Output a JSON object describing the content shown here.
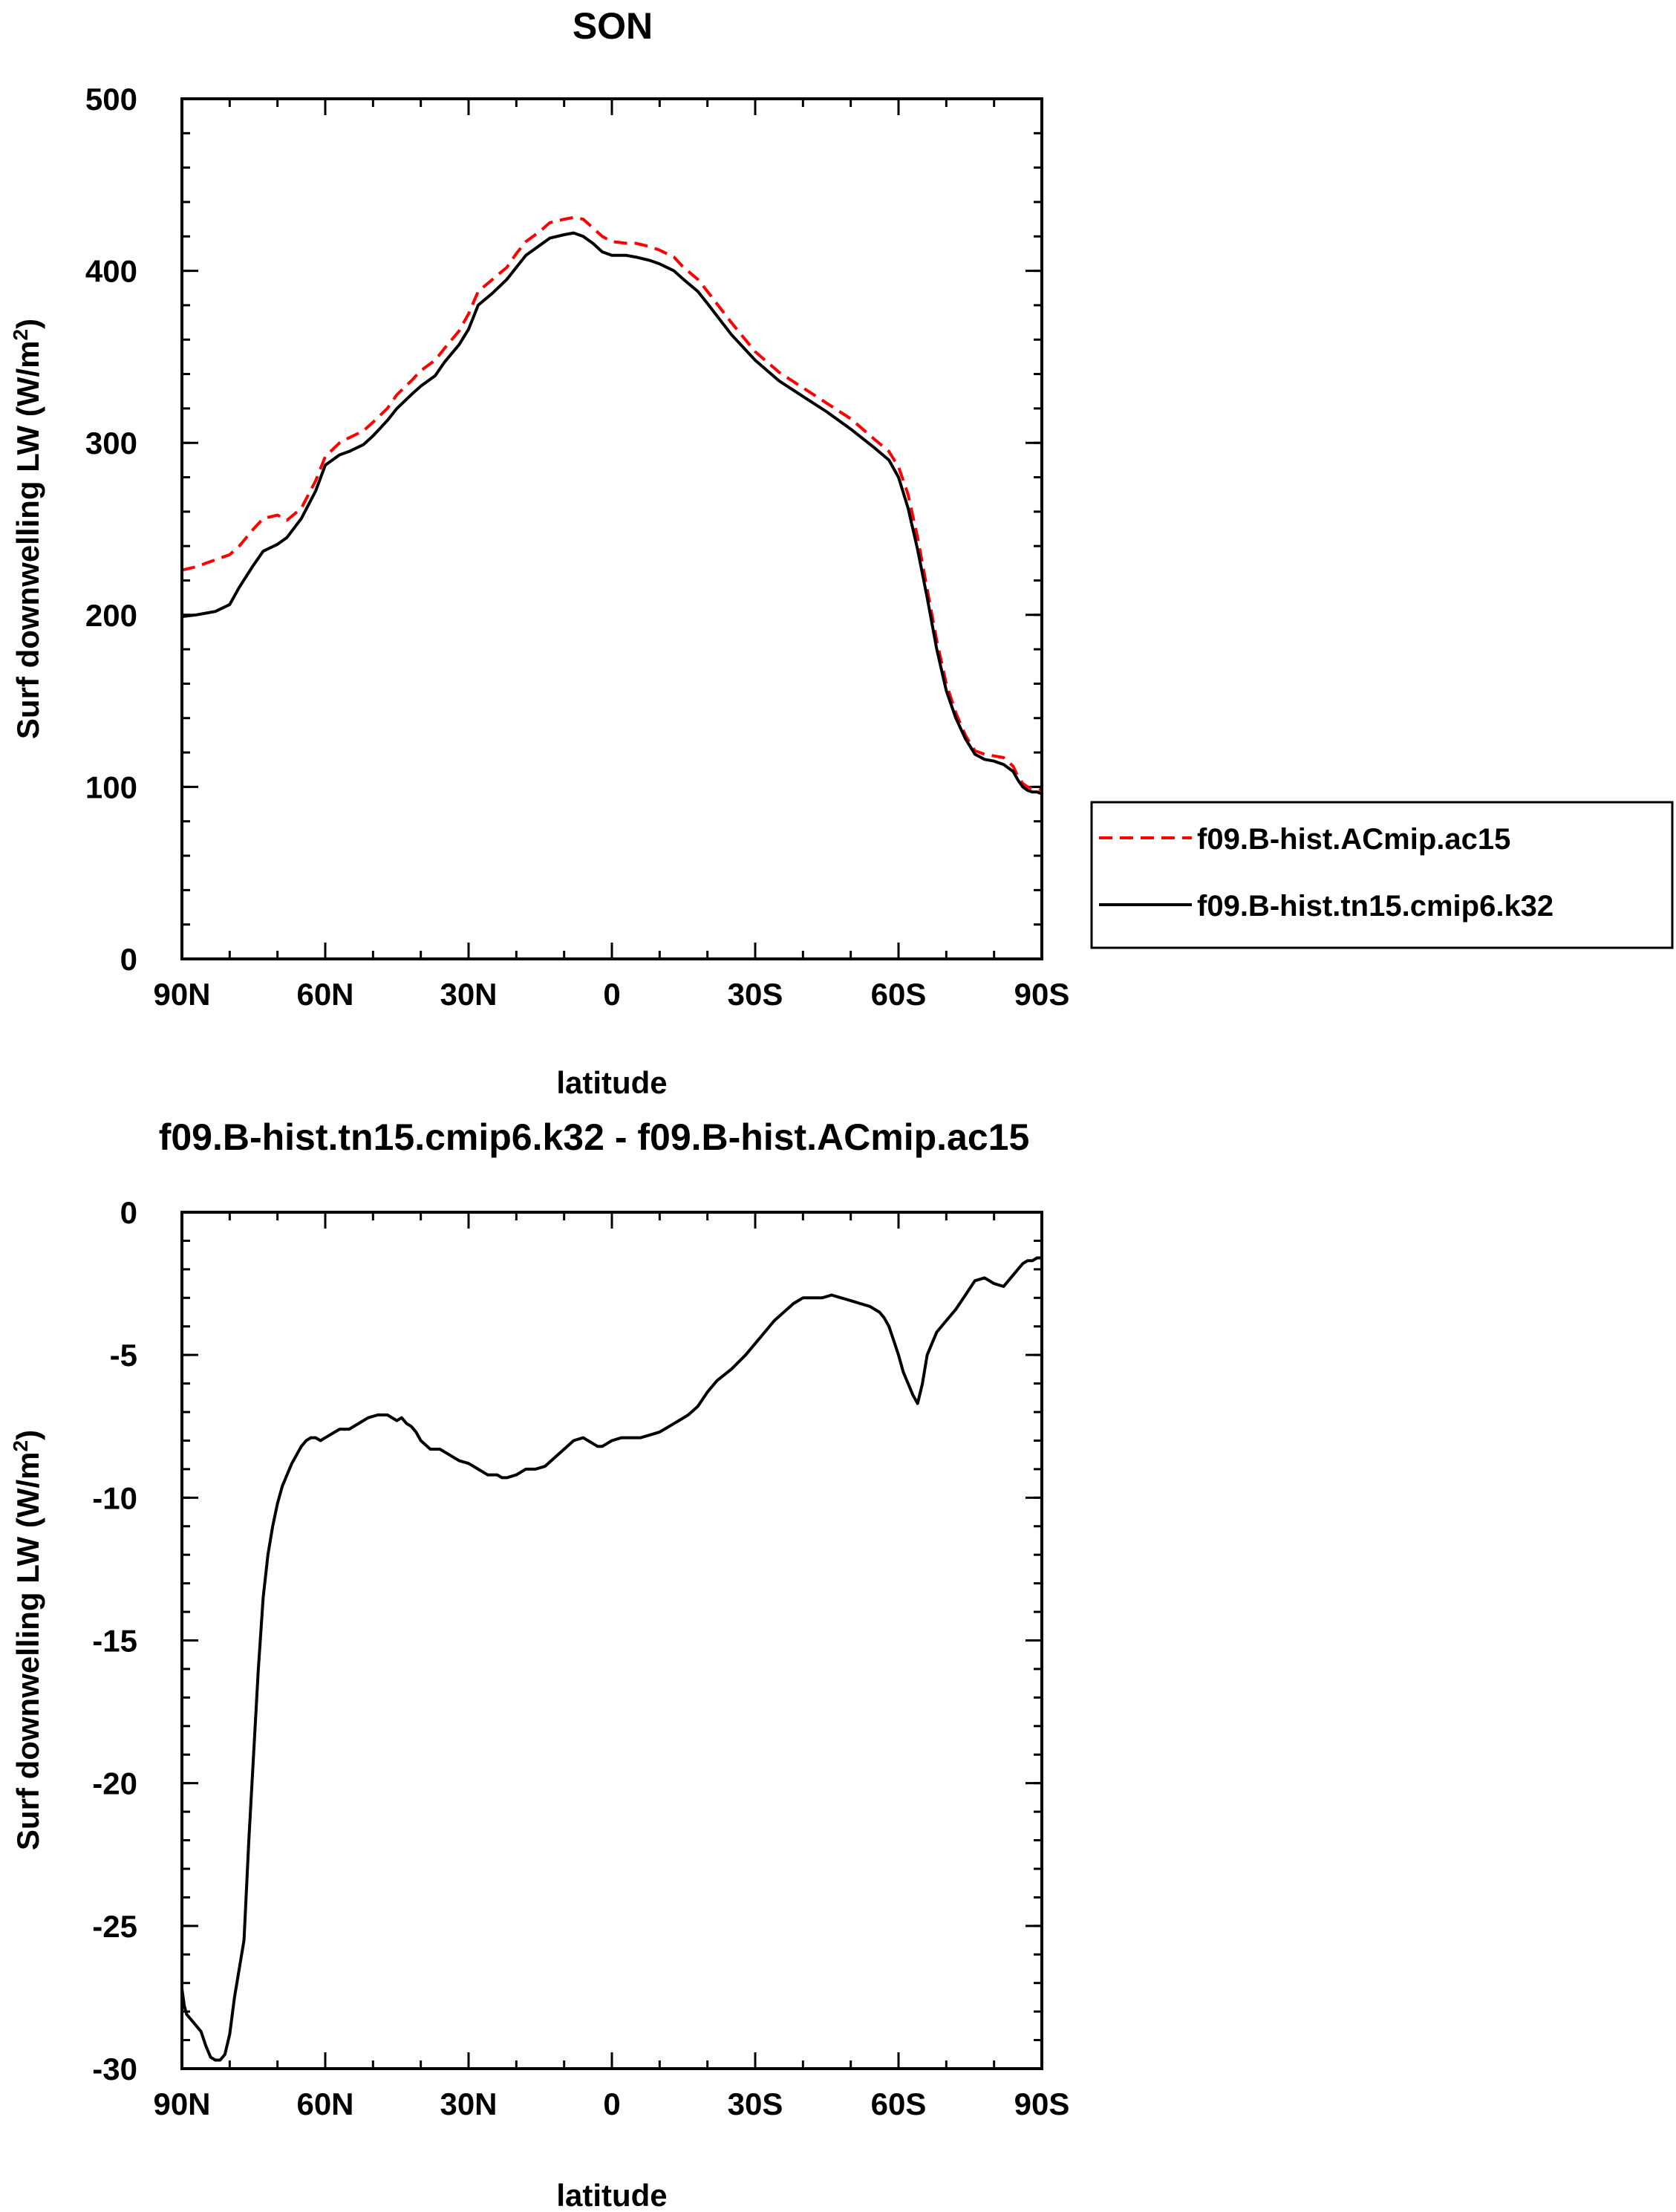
{
  "chart_data": [
    {
      "type": "line",
      "title": "SON",
      "xlabel": "latitude",
      "ylabel": "Surf downwelling LW (W/m",
      "ylabel_sup": "2",
      "ylabel_close": ")",
      "xlim": [
        90,
        -90
      ],
      "ylim": [
        0,
        500
      ],
      "x_ticks": [
        {
          "value": 90,
          "label": "90N"
        },
        {
          "value": 60,
          "label": "60N"
        },
        {
          "value": 30,
          "label": "30N"
        },
        {
          "value": 0,
          "label": "0"
        },
        {
          "value": -30,
          "label": "30S"
        },
        {
          "value": -60,
          "label": "60S"
        },
        {
          "value": -90,
          "label": "90S"
        }
      ],
      "y_ticks": [
        {
          "value": 0,
          "label": "0"
        },
        {
          "value": 100,
          "label": "100"
        },
        {
          "value": 200,
          "label": "200"
        },
        {
          "value": 300,
          "label": "300"
        },
        {
          "value": 400,
          "label": "400"
        },
        {
          "value": 500,
          "label": "500"
        }
      ],
      "grid": false,
      "legend": "right",
      "series": [
        {
          "name": "f09.B-hist.ACmip.ac15",
          "color": "#ff0000",
          "dash": "dashed",
          "x": [
            90,
            87,
            85,
            83,
            80,
            78,
            75,
            73,
            70,
            68,
            65,
            62,
            60,
            57,
            55,
            52,
            50,
            47,
            45,
            42,
            40,
            37,
            35,
            32,
            30,
            28,
            25,
            22,
            20,
            18,
            15,
            13,
            10,
            8,
            6,
            4,
            2,
            0,
            -3,
            -5,
            -8,
            -10,
            -13,
            -15,
            -18,
            -20,
            -25,
            -30,
            -35,
            -40,
            -45,
            -50,
            -55,
            -58,
            -60,
            -62,
            -64,
            -66,
            -68,
            -70,
            -72,
            -74,
            -76,
            -78,
            -80,
            -82,
            -84,
            -85,
            -86,
            -87,
            -88,
            -89,
            -90
          ],
          "y": [
            226,
            228,
            230,
            232,
            235,
            240,
            250,
            256,
            258,
            255,
            262,
            278,
            292,
            300,
            303,
            307,
            312,
            320,
            328,
            336,
            342,
            348,
            355,
            365,
            375,
            388,
            395,
            402,
            410,
            417,
            423,
            428,
            430,
            431,
            430,
            425,
            420,
            417,
            416,
            416,
            414,
            412,
            408,
            402,
            395,
            388,
            370,
            353,
            341,
            332,
            323,
            314,
            302,
            295,
            286,
            270,
            245,
            215,
            185,
            160,
            143,
            130,
            121,
            119,
            118,
            117,
            112,
            106,
            102,
            100,
            99,
            99,
            98
          ]
        },
        {
          "name": "f09.B-hist.tn15.cmip6.k32",
          "color": "#000000",
          "dash": "solid",
          "x": [
            90,
            87,
            85,
            83,
            80,
            78,
            75,
            73,
            70,
            68,
            65,
            62,
            60,
            57,
            55,
            52,
            50,
            47,
            45,
            42,
            40,
            37,
            35,
            32,
            30,
            28,
            25,
            22,
            20,
            18,
            15,
            13,
            10,
            8,
            6,
            4,
            2,
            0,
            -3,
            -5,
            -8,
            -10,
            -13,
            -15,
            -18,
            -20,
            -25,
            -30,
            -35,
            -40,
            -45,
            -50,
            -55,
            -58,
            -60,
            -62,
            -64,
            -66,
            -68,
            -70,
            -72,
            -74,
            -76,
            -78,
            -80,
            -82,
            -84,
            -85,
            -86,
            -87,
            -88,
            -89,
            -90
          ],
          "y": [
            199,
            200,
            201,
            202,
            206,
            216,
            229,
            237,
            241,
            245,
            256,
            272,
            287,
            293,
            295,
            299,
            304,
            313,
            320,
            328,
            333,
            339,
            347,
            357,
            366,
            380,
            387,
            395,
            402,
            409,
            415,
            419,
            421,
            422,
            420,
            416,
            411,
            409,
            409,
            408,
            406,
            404,
            400,
            395,
            388,
            381,
            363,
            348,
            336,
            327,
            318,
            308,
            297,
            290,
            280,
            262,
            238,
            210,
            180,
            156,
            140,
            128,
            119,
            116,
            115,
            113,
            109,
            104,
            100,
            98,
            97,
            97,
            96
          ]
        }
      ]
    },
    {
      "type": "line",
      "title": "f09.B-hist.tn15.cmip6.k32 - f09.B-hist.ACmip.ac15",
      "xlabel": "latitude",
      "ylabel": "Surf downwelling LW (W/m",
      "ylabel_sup": "2",
      "ylabel_close": ")",
      "xlim": [
        90,
        -90
      ],
      "ylim": [
        -30,
        0
      ],
      "x_ticks": [
        {
          "value": 90,
          "label": "90N"
        },
        {
          "value": 60,
          "label": "60N"
        },
        {
          "value": 30,
          "label": "30N"
        },
        {
          "value": 0,
          "label": "0"
        },
        {
          "value": -30,
          "label": "30S"
        },
        {
          "value": -60,
          "label": "60S"
        },
        {
          "value": -90,
          "label": "90S"
        }
      ],
      "y_ticks": [
        {
          "value": 0,
          "label": "0"
        },
        {
          "value": -5,
          "label": "-5"
        },
        {
          "value": -10,
          "label": "-10"
        },
        {
          "value": -15,
          "label": "-15"
        },
        {
          "value": -20,
          "label": "-20"
        },
        {
          "value": -25,
          "label": "-25"
        },
        {
          "value": -30,
          "label": "-30"
        }
      ],
      "grid": false,
      "series": [
        {
          "color": "#000000",
          "dash": "solid",
          "x": [
            90,
            89.5,
            89,
            88,
            87,
            86,
            85,
            84,
            83,
            82,
            81,
            80,
            79,
            78,
            77,
            76,
            75,
            74,
            73,
            72,
            71,
            70,
            69,
            68,
            67,
            66,
            65,
            64,
            63,
            62,
            61,
            60,
            59,
            58,
            57,
            55,
            53,
            51,
            49,
            47,
            45,
            44,
            43,
            42,
            41,
            40,
            38,
            36,
            35,
            34,
            32,
            30,
            28,
            27,
            26,
            25,
            24,
            23,
            22,
            20,
            19,
            18,
            17,
            16,
            14,
            12,
            10,
            8,
            6,
            5,
            4,
            3,
            2,
            1,
            0,
            -2,
            -4,
            -6,
            -8,
            -10,
            -12,
            -14,
            -16,
            -18,
            -20,
            -22,
            -25,
            -28,
            -30,
            -32,
            -34,
            -36,
            -38,
            -40,
            -42,
            -44,
            -46,
            -48,
            -50,
            -52,
            -54,
            -56,
            -57,
            -58,
            -59,
            -60,
            -61,
            -62,
            -63,
            -64,
            -65,
            -66,
            -67,
            -68,
            -70,
            -72,
            -74,
            -76,
            -78,
            -80,
            -82,
            -84,
            -85,
            -86,
            -87,
            -88,
            -89,
            -90
          ],
          "y": [
            -27.2,
            -27.8,
            -28.1,
            -28.3,
            -28.5,
            -28.7,
            -29.2,
            -29.6,
            -29.7,
            -29.7,
            -29.5,
            -28.8,
            -27.5,
            -26.5,
            -25.5,
            -22.0,
            -19.0,
            -16.0,
            -13.5,
            -12.0,
            -11.0,
            -10.2,
            -9.6,
            -9.2,
            -8.8,
            -8.5,
            -8.2,
            -8.0,
            -7.9,
            -7.9,
            -8.0,
            -7.9,
            -7.8,
            -7.7,
            -7.6,
            -7.6,
            -7.4,
            -7.2,
            -7.1,
            -7.1,
            -7.3,
            -7.2,
            -7.4,
            -7.5,
            -7.7,
            -8.0,
            -8.3,
            -8.3,
            -8.4,
            -8.5,
            -8.7,
            -8.8,
            -9.0,
            -9.1,
            -9.2,
            -9.2,
            -9.2,
            -9.3,
            -9.3,
            -9.2,
            -9.1,
            -9.0,
            -9.0,
            -9.0,
            -8.9,
            -8.6,
            -8.3,
            -8.0,
            -7.9,
            -8.0,
            -8.1,
            -8.2,
            -8.2,
            -8.1,
            -8.0,
            -7.9,
            -7.9,
            -7.9,
            -7.8,
            -7.7,
            -7.5,
            -7.3,
            -7.1,
            -6.8,
            -6.3,
            -5.9,
            -5.5,
            -5.0,
            -4.6,
            -4.2,
            -3.8,
            -3.5,
            -3.2,
            -3.0,
            -3.0,
            -3.0,
            -2.9,
            -3.0,
            -3.1,
            -3.2,
            -3.3,
            -3.5,
            -3.7,
            -4.0,
            -4.5,
            -5.0,
            -5.6,
            -6.0,
            -6.4,
            -6.7,
            -6.0,
            -5.0,
            -4.6,
            -4.2,
            -3.8,
            -3.4,
            -2.9,
            -2.4,
            -2.3,
            -2.5,
            -2.6,
            -2.2,
            -2.0,
            -1.8,
            -1.7,
            -1.7,
            -1.6,
            -1.6
          ]
        }
      ]
    }
  ]
}
